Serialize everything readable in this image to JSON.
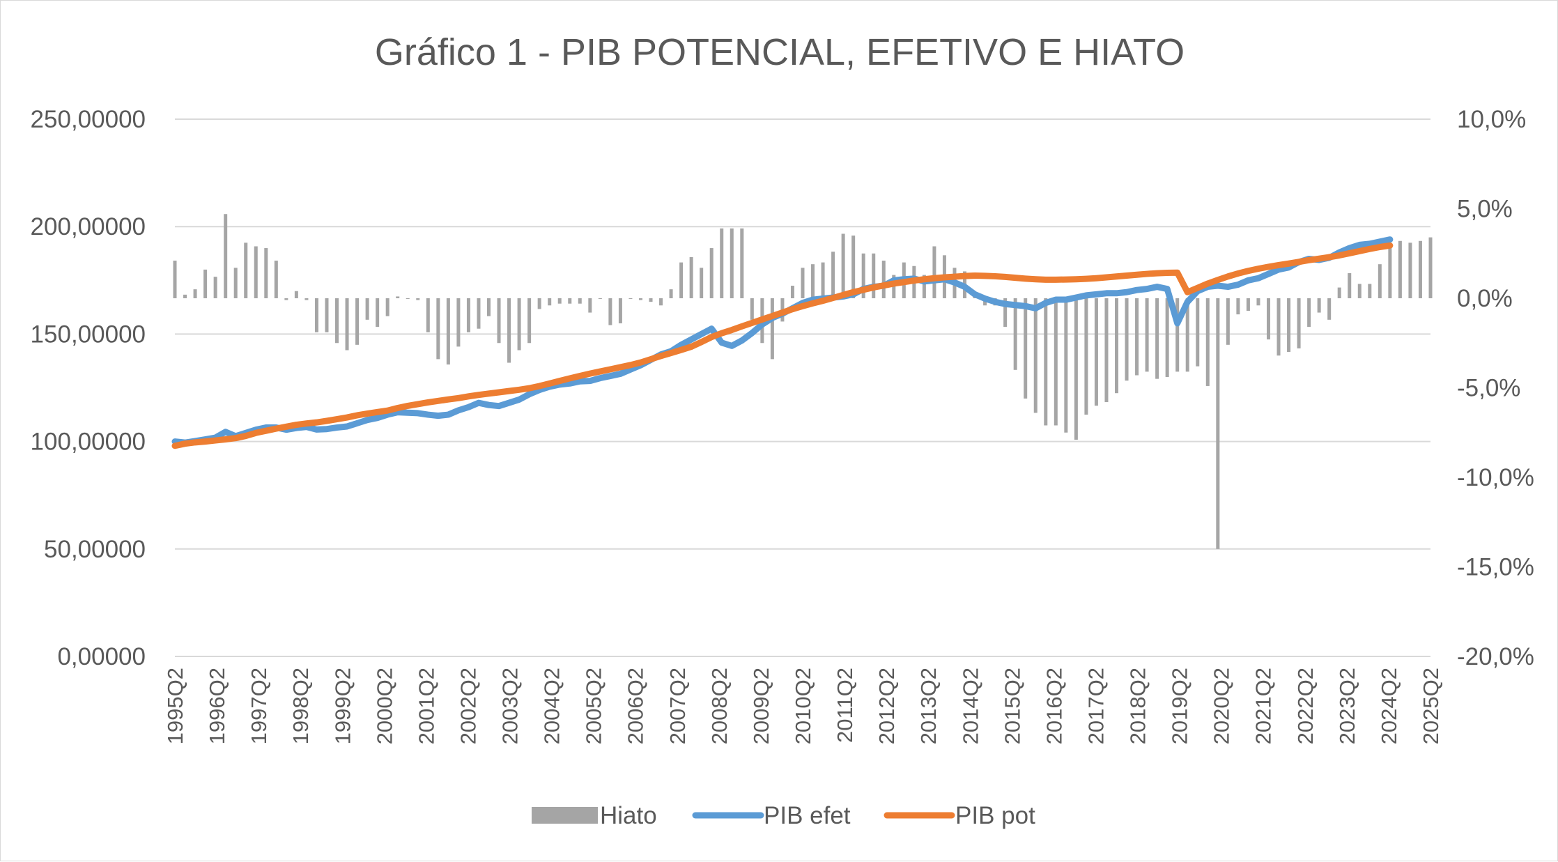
{
  "chart_data": {
    "type": "bar+line",
    "title": "Gráfico 1 - PIB POTENCIAL, EFETIVO E HIATO",
    "y_left": {
      "ylim": [
        0,
        250
      ],
      "ticks": [
        "250,00000",
        "200,00000",
        "150,00000",
        "100,00000",
        "50,00000",
        "0,00000"
      ]
    },
    "y_right": {
      "ylim": [
        -20,
        10
      ],
      "unit": "%",
      "ticks": [
        "10,0%",
        "5,0%",
        "0,0%",
        "-5,0%",
        "-10,0%",
        "-15,0%",
        "-20,0%"
      ]
    },
    "x_tick_labels": [
      "1995Q2",
      "1996Q2",
      "1997Q2",
      "1998Q2",
      "1999Q2",
      "2000Q2",
      "2001Q2",
      "2002Q2",
      "2003Q2",
      "2004Q2",
      "2005Q2",
      "2006Q2",
      "2007Q2",
      "2008Q2",
      "2009Q2",
      "2010Q2",
      "2011Q2",
      "2012Q2",
      "2013Q2",
      "2014Q2",
      "2015Q2",
      "2016Q2",
      "2017Q2",
      "2018Q2",
      "2019Q2",
      "2020Q2",
      "2021Q2",
      "2022Q2",
      "2023Q2",
      "2024Q2",
      "2025Q2"
    ],
    "x_start": "1995Q2",
    "x_end": "2025Q2",
    "grid": true,
    "legend_position": "bottom",
    "colors": {
      "hiato": "#a5a5a5",
      "pib_efet": "#5b9bd5",
      "pib_pot": "#ed7d31",
      "grid": "#d9d9d9"
    },
    "series": [
      {
        "name": "Hiato",
        "kind": "bar",
        "axis": "right",
        "values": [
          2.1,
          0.2,
          0.5,
          1.6,
          1.2,
          4.7,
          1.7,
          3.1,
          2.9,
          2.8,
          2.1,
          -0.1,
          0.4,
          -0.1,
          -1.9,
          -1.9,
          -2.5,
          -2.9,
          -2.6,
          -1.2,
          -1.6,
          -1.0,
          0.1,
          0.0,
          -0.1,
          -1.9,
          -3.4,
          -3.7,
          -2.7,
          -1.9,
          -1.7,
          -1.0,
          -2.5,
          -3.6,
          -2.9,
          -2.5,
          -0.6,
          -0.4,
          -0.3,
          -0.3,
          -0.3,
          -0.8,
          0.0,
          -1.5,
          -1.4,
          0.0,
          -0.1,
          -0.2,
          -0.4,
          0.5,
          2.0,
          2.3,
          1.7,
          2.8,
          3.9,
          3.9,
          3.9,
          -1.2,
          -2.5,
          -3.4,
          -1.3,
          0.7,
          1.7,
          1.9,
          2.0,
          2.6,
          3.6,
          3.5,
          2.5,
          2.5,
          2.1,
          1.3,
          2.0,
          1.8,
          1.3,
          2.9,
          2.4,
          1.7,
          1.5,
          0.3,
          -0.4,
          -0.4,
          -1.6,
          -4.0,
          -5.6,
          -6.4,
          -7.1,
          -7.1,
          -7.5,
          -7.9,
          -6.5,
          -6.0,
          -5.8,
          -5.3,
          -4.6,
          -4.3,
          -4.1,
          -4.5,
          -4.4,
          -4.1,
          -4.1,
          -3.8,
          -4.9,
          -14.0,
          -2.6,
          -0.9,
          -0.7,
          -0.4,
          -2.3,
          -3.2,
          -3.0,
          -2.8,
          -1.6,
          -0.8,
          -1.2,
          0.6,
          1.4,
          0.8,
          0.8,
          1.9,
          2.8,
          3.2,
          3.1,
          3.2,
          3.4
        ]
      },
      {
        "name": "PIB efet",
        "kind": "line",
        "axis": "left",
        "values": [
          100.0,
          99.5,
          100.2,
          101.0,
          101.8,
          104.5,
          102.5,
          104.0,
          105.5,
          106.5,
          106.5,
          105.5,
          106.3,
          106.8,
          105.6,
          105.8,
          106.5,
          107.0,
          108.5,
          110.0,
          111.0,
          112.5,
          113.6,
          113.4,
          113.2,
          112.5,
          112.0,
          112.5,
          114.5,
          116.0,
          118.0,
          117.0,
          116.5,
          118.0,
          119.5,
          122.0,
          124.0,
          125.5,
          126.5,
          127.0,
          128.0,
          128.2,
          129.5,
          130.5,
          131.5,
          133.5,
          135.5,
          138.0,
          140.5,
          142.0,
          145.0,
          147.5,
          150.0,
          152.5,
          146.0,
          144.5,
          147.0,
          150.5,
          154.5,
          157.5,
          159.5,
          162.0,
          164.5,
          166.0,
          166.5,
          167.0,
          167.5,
          168.5,
          171.0,
          172.0,
          172.5,
          175.0,
          175.5,
          175.8,
          174.5,
          175.0,
          175.5,
          174.0,
          172.0,
          168.5,
          166.5,
          165.0,
          164.0,
          163.5,
          163.0,
          162.0,
          164.5,
          166.0,
          166.0,
          167.0,
          168.0,
          168.5,
          169.0,
          169.0,
          169.5,
          170.5,
          171.0,
          172.0,
          171.0,
          155.0,
          165.0,
          170.0,
          172.0,
          172.5,
          172.0,
          173.0,
          175.0,
          176.0,
          178.0,
          180.0,
          181.0,
          183.5,
          185.0,
          184.5,
          185.5,
          188.0,
          190.0,
          191.5,
          192.0,
          193.0,
          194.0
        ]
      },
      {
        "name": "PIB pot",
        "kind": "line",
        "axis": "left",
        "values": [
          98.0,
          99.0,
          99.6,
          100.0,
          100.5,
          101.0,
          101.6,
          102.6,
          104.0,
          105.0,
          106.0,
          106.9,
          107.8,
          108.4,
          108.9,
          109.6,
          110.4,
          111.2,
          112.2,
          113.0,
          113.7,
          114.4,
          115.6,
          116.6,
          117.4,
          118.2,
          118.9,
          119.6,
          120.2,
          121.0,
          121.7,
          122.3,
          122.9,
          123.5,
          124.1,
          124.8,
          125.8,
          127.0,
          128.2,
          129.4,
          130.5,
          131.6,
          132.6,
          133.6,
          134.6,
          135.6,
          136.8,
          138.3,
          139.8,
          141.2,
          142.6,
          144.1,
          146.3,
          148.6,
          150.4,
          151.9,
          153.6,
          155.2,
          156.8,
          158.4,
          160.0,
          161.6,
          163.0,
          164.3,
          165.5,
          166.8,
          168.2,
          169.5,
          170.6,
          171.7,
          172.6,
          173.5,
          174.2,
          174.9,
          175.5,
          176.0,
          176.4,
          176.7,
          177.0,
          177.2,
          177.1,
          176.9,
          176.6,
          176.2,
          175.8,
          175.5,
          175.3,
          175.3,
          175.4,
          175.5,
          175.7,
          176.0,
          176.4,
          176.8,
          177.2,
          177.6,
          178.0,
          178.3,
          178.5,
          178.6,
          169.5,
          171.5,
          173.5,
          175.2,
          176.8,
          178.2,
          179.4,
          180.4,
          181.3,
          182.1,
          182.8,
          183.6,
          184.4,
          185.1,
          185.8,
          186.6,
          187.6,
          188.6,
          189.6,
          190.5,
          191.2
        ]
      }
    ]
  }
}
